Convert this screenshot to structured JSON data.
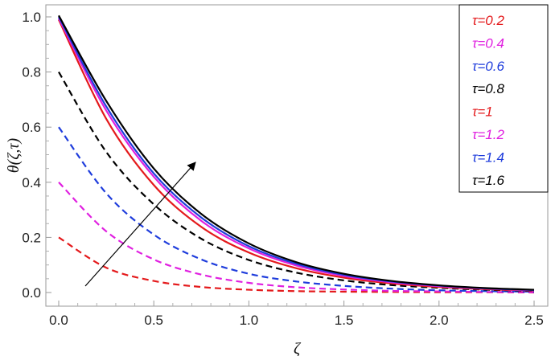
{
  "chart_data": {
    "type": "line",
    "title": "",
    "xlabel": "ζ",
    "ylabel": "θ(ζ,τ)",
    "xlim": [
      0,
      2.5
    ],
    "ylim": [
      0,
      1.0
    ],
    "xticks": [
      "0.0",
      "0.5",
      "1.0",
      "1.5",
      "2.0",
      "2.5"
    ],
    "yticks": [
      "0.0",
      "0.2",
      "0.4",
      "0.6",
      "0.8",
      "1.0"
    ],
    "grid": false,
    "legend_position": "top-right",
    "legend_labels": [
      "τ=0.2",
      "τ=0.4",
      "τ=0.6",
      "τ=0.8",
      "τ=1",
      "τ=1.2",
      "τ=1.4",
      "τ=1.6"
    ],
    "annotation": "arrow indicating increasing τ",
    "x": [
      0,
      0.25,
      0.5,
      0.75,
      1.0,
      1.25,
      1.5,
      1.75,
      2.0,
      2.25,
      2.5
    ],
    "series": [
      {
        "name": "τ=0.2",
        "color": "#e41a1c",
        "style": "dashed",
        "values": [
          0.2,
          0.09,
          0.042,
          0.02,
          0.01,
          0.005,
          0.003,
          0.002,
          0.001,
          0.001,
          0.0
        ]
      },
      {
        "name": "τ=0.4",
        "color": "#e020e0",
        "style": "dashed",
        "values": [
          0.4,
          0.222,
          0.12,
          0.065,
          0.035,
          0.019,
          0.011,
          0.006,
          0.004,
          0.002,
          0.001
        ]
      },
      {
        "name": "τ=0.6",
        "color": "#1f3ddc",
        "style": "dashed",
        "values": [
          0.6,
          0.36,
          0.21,
          0.12,
          0.068,
          0.04,
          0.024,
          0.014,
          0.008,
          0.005,
          0.003
        ]
      },
      {
        "name": "τ=0.8",
        "color": "#000000",
        "style": "dashed",
        "values": [
          0.8,
          0.51,
          0.32,
          0.195,
          0.118,
          0.072,
          0.044,
          0.027,
          0.017,
          0.01,
          0.006
        ]
      },
      {
        "name": "τ=1",
        "color": "#e41a1c",
        "style": "solid",
        "values": [
          0.99,
          0.63,
          0.39,
          0.238,
          0.145,
          0.088,
          0.054,
          0.033,
          0.02,
          0.012,
          0.007
        ]
      },
      {
        "name": "τ=1.2",
        "color": "#e020e0",
        "style": "solid",
        "values": [
          0.995,
          0.66,
          0.42,
          0.26,
          0.16,
          0.098,
          0.06,
          0.037,
          0.023,
          0.014,
          0.008
        ]
      },
      {
        "name": "τ=1.4",
        "color": "#1f3ddc",
        "style": "solid",
        "values": [
          1.0,
          0.675,
          0.432,
          0.272,
          0.168,
          0.104,
          0.064,
          0.04,
          0.025,
          0.015,
          0.009
        ]
      },
      {
        "name": "τ=1.6",
        "color": "#000000",
        "style": "solid",
        "values": [
          1.005,
          0.695,
          0.45,
          0.285,
          0.178,
          0.11,
          0.068,
          0.042,
          0.026,
          0.016,
          0.01
        ]
      }
    ]
  }
}
